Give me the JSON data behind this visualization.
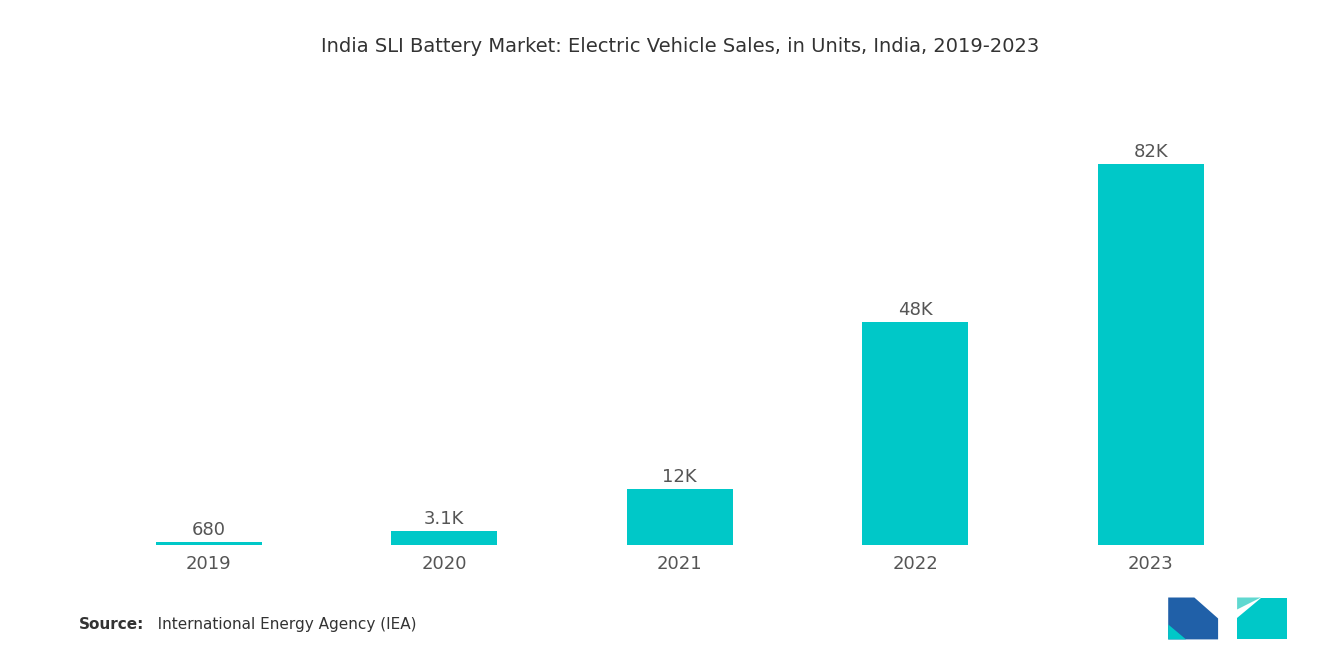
{
  "title": "India SLI Battery Market: Electric Vehicle Sales, in Units, India, 2019-2023",
  "categories": [
    "2019",
    "2020",
    "2021",
    "2022",
    "2023"
  ],
  "values": [
    680,
    3100,
    12000,
    48000,
    82000
  ],
  "labels": [
    "680",
    "3.1K",
    "12K",
    "48K",
    "82K"
  ],
  "bar_color": "#00C8C8",
  "background_color": "#FFFFFF",
  "title_fontsize": 14,
  "label_fontsize": 13,
  "tick_fontsize": 13,
  "source_bold": "Source:",
  "source_normal": "   International Energy Agency (IEA)",
  "source_fontsize": 11,
  "bar_width": 0.45,
  "ylim_factor": 1.22,
  "logo_left_color": "#2060A8",
  "logo_right_color": "#00C8C8"
}
